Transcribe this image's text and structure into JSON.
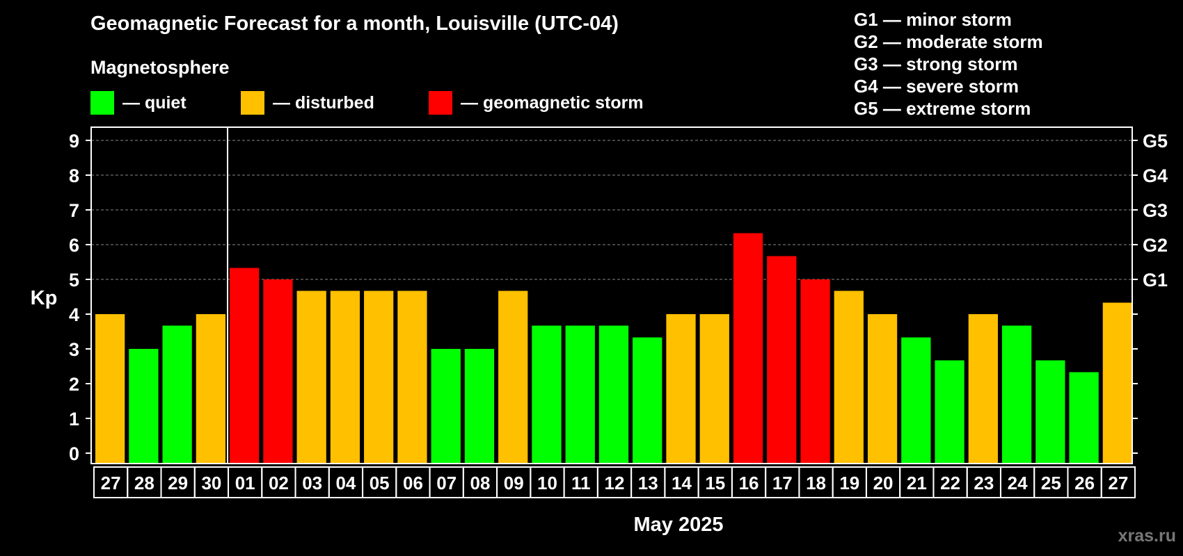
{
  "chart_data": {
    "type": "bar",
    "title": "Geomagnetic Forecast for a month, Louisville (UTC-04)",
    "legend": {
      "heading": "Magnetosphere",
      "entries": [
        {
          "label": "— quiet",
          "color": "#00ff00"
        },
        {
          "label": "— disturbed",
          "color": "#ffc000"
        },
        {
          "label": "— geomagnetic storm",
          "color": "#ff0000"
        }
      ]
    },
    "storm_scale": [
      "G1 — minor storm",
      "G2 — moderate storm",
      "G3 — strong storm",
      "G4 — severe storm",
      "G5 — extreme storm"
    ],
    "ylabel": "Kp",
    "ylim": [
      0,
      9
    ],
    "yticks": [
      0,
      1,
      2,
      3,
      4,
      5,
      6,
      7,
      8,
      9
    ],
    "right_ticks": [
      {
        "y": 5,
        "label": "G1"
      },
      {
        "y": 6,
        "label": "G2"
      },
      {
        "y": 7,
        "label": "G3"
      },
      {
        "y": 8,
        "label": "G4"
      },
      {
        "y": 9,
        "label": "G5"
      }
    ],
    "grid": "dashed horizontal at 5–9",
    "xlabel": "May 2025",
    "month_divider_after": "30",
    "categories": [
      "27",
      "28",
      "29",
      "30",
      "01",
      "02",
      "03",
      "04",
      "05",
      "06",
      "07",
      "08",
      "09",
      "10",
      "11",
      "12",
      "13",
      "14",
      "15",
      "16",
      "17",
      "18",
      "19",
      "20",
      "21",
      "22",
      "23",
      "24",
      "25",
      "26",
      "27"
    ],
    "values": [
      4,
      3,
      3.67,
      4,
      5.33,
      5,
      4.67,
      4.67,
      4.67,
      4.67,
      3,
      3,
      4.67,
      3.67,
      3.67,
      3.67,
      3.33,
      4,
      4,
      6.33,
      5.67,
      5,
      4.67,
      4,
      3.33,
      2.67,
      4,
      3.67,
      2.67,
      2.33,
      4.33
    ],
    "levels": [
      "disturbed",
      "quiet",
      "quiet",
      "disturbed",
      "storm",
      "storm",
      "disturbed",
      "disturbed",
      "disturbed",
      "disturbed",
      "quiet",
      "quiet",
      "disturbed",
      "quiet",
      "quiet",
      "quiet",
      "quiet",
      "disturbed",
      "disturbed",
      "storm",
      "storm",
      "storm",
      "disturbed",
      "disturbed",
      "quiet",
      "quiet",
      "disturbed",
      "quiet",
      "quiet",
      "quiet",
      "disturbed"
    ],
    "colors": {
      "quiet": "#00ff00",
      "disturbed": "#ffc000",
      "storm": "#ff0000"
    }
  },
  "watermark": "xras.ru"
}
